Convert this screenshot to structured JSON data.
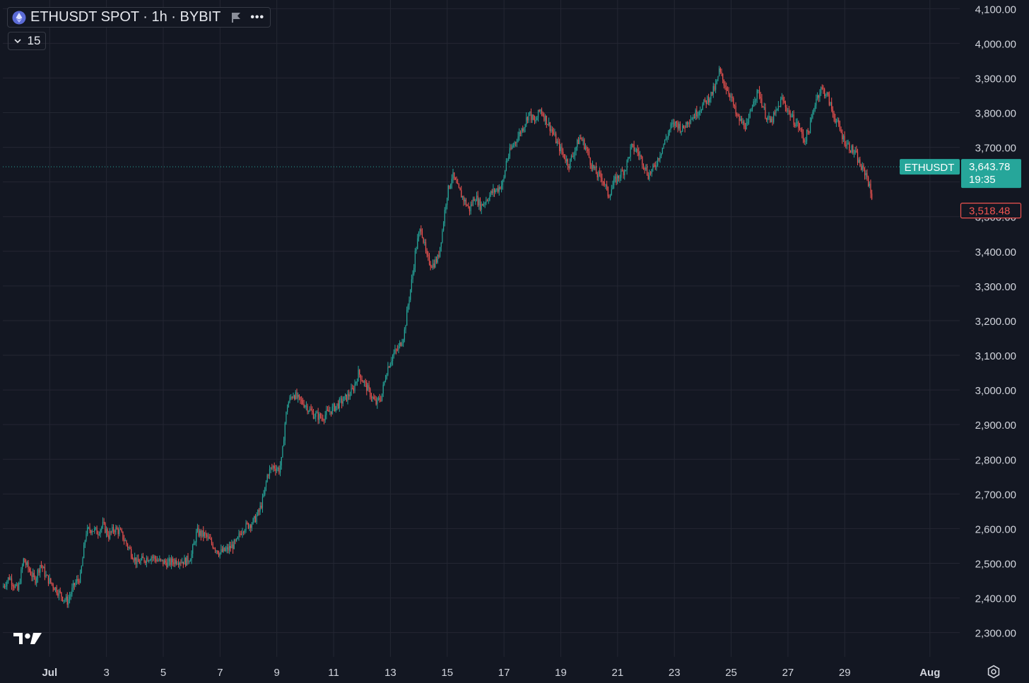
{
  "header": {
    "title": "ETHUSDT SPOT · 1h · BYBIT",
    "interval_value": "15"
  },
  "icons": {
    "coin": "ethereum-coin-icon",
    "flag": "flag-icon",
    "more": "more-dots-icon",
    "chevron": "chevron-down-icon",
    "logo": "tradingview-logo",
    "settings": "settings-gear-icon"
  },
  "colors": {
    "background": "#131722",
    "up": "#26a69a",
    "down": "#ef5350",
    "grid": "#242733",
    "text": "#d1d4dc"
  },
  "price_tags": {
    "last": {
      "symbol": "ETHUSDT",
      "price": "3,643.78",
      "countdown": "19:35"
    },
    "low": {
      "price": "3,518.48"
    }
  },
  "chart_data": {
    "type": "candlestick",
    "ylim": [
      2230,
      4125
    ],
    "y_ticks": [
      "2,300.00",
      "2,400.00",
      "2,500.00",
      "2,600.00",
      "2,700.00",
      "2,800.00",
      "2,900.00",
      "3,000.00",
      "3,100.00",
      "3,200.00",
      "3,300.00",
      "3,400.00",
      "3,500.00",
      "3,600.00",
      "3,700.00",
      "3,800.00",
      "3,900.00",
      "4,000.00",
      "4,100.00"
    ],
    "x_ticks": [
      "Jul",
      "3",
      "5",
      "7",
      "9",
      "11",
      "13",
      "15",
      "17",
      "19",
      "21",
      "23",
      "25",
      "27",
      "29",
      "Aug"
    ],
    "x_tick_days": [
      1,
      3,
      5,
      7,
      9,
      11,
      13,
      15,
      17,
      19,
      21,
      23,
      25,
      27,
      29,
      32
    ],
    "x_range_days": [
      -0.65,
      33.05
    ],
    "last_price": 3643.78,
    "low_tag_price": 3518.48,
    "price_path": [
      [
        -0.65,
        2430
      ],
      [
        -0.4,
        2460
      ],
      [
        -0.1,
        2420
      ],
      [
        0.1,
        2510
      ],
      [
        0.3,
        2480
      ],
      [
        0.5,
        2450
      ],
      [
        0.7,
        2500
      ],
      [
        0.9,
        2460
      ],
      [
        1.1,
        2440
      ],
      [
        1.3,
        2420
      ],
      [
        1.5,
        2400
      ],
      [
        1.65,
        2390
      ],
      [
        1.9,
        2440
      ],
      [
        2.1,
        2460
      ],
      [
        2.3,
        2590
      ],
      [
        2.5,
        2600
      ],
      [
        2.7,
        2590
      ],
      [
        2.9,
        2610
      ],
      [
        3.1,
        2580
      ],
      [
        3.3,
        2600
      ],
      [
        3.5,
        2590
      ],
      [
        3.7,
        2560
      ],
      [
        3.9,
        2530
      ],
      [
        4.1,
        2500
      ],
      [
        4.3,
        2510
      ],
      [
        4.6,
        2520
      ],
      [
        4.9,
        2505
      ],
      [
        5.2,
        2500
      ],
      [
        5.5,
        2510
      ],
      [
        5.8,
        2505
      ],
      [
        6.0,
        2520
      ],
      [
        6.2,
        2590
      ],
      [
        6.5,
        2580
      ],
      [
        6.8,
        2550
      ],
      [
        7.0,
        2530
      ],
      [
        7.3,
        2540
      ],
      [
        7.6,
        2560
      ],
      [
        7.8,
        2600
      ],
      [
        8.0,
        2610
      ],
      [
        8.2,
        2620
      ],
      [
        8.4,
        2650
      ],
      [
        8.55,
        2690
      ],
      [
        8.7,
        2760
      ],
      [
        8.9,
        2780
      ],
      [
        9.1,
        2770
      ],
      [
        9.2,
        2800
      ],
      [
        9.3,
        2900
      ],
      [
        9.4,
        2960
      ],
      [
        9.6,
        2990
      ],
      [
        9.8,
        2970
      ],
      [
        10.0,
        2960
      ],
      [
        10.3,
        2930
      ],
      [
        10.6,
        2920
      ],
      [
        10.9,
        2940
      ],
      [
        11.2,
        2960
      ],
      [
        11.5,
        2980
      ],
      [
        11.7,
        3000
      ],
      [
        11.9,
        3050
      ],
      [
        12.1,
        3020
      ],
      [
        12.3,
        2990
      ],
      [
        12.5,
        2960
      ],
      [
        12.7,
        2980
      ],
      [
        12.9,
        3060
      ],
      [
        13.1,
        3100
      ],
      [
        13.3,
        3120
      ],
      [
        13.5,
        3160
      ],
      [
        13.65,
        3250
      ],
      [
        13.8,
        3330
      ],
      [
        13.9,
        3400
      ],
      [
        14.0,
        3440
      ],
      [
        14.1,
        3470
      ],
      [
        14.3,
        3380
      ],
      [
        14.5,
        3360
      ],
      [
        14.7,
        3380
      ],
      [
        14.85,
        3460
      ],
      [
        15.0,
        3560
      ],
      [
        15.2,
        3620
      ],
      [
        15.4,
        3580
      ],
      [
        15.6,
        3550
      ],
      [
        15.8,
        3520
      ],
      [
        16.0,
        3560
      ],
      [
        16.2,
        3530
      ],
      [
        16.4,
        3550
      ],
      [
        16.6,
        3570
      ],
      [
        16.8,
        3580
      ],
      [
        17.0,
        3600
      ],
      [
        17.1,
        3660
      ],
      [
        17.3,
        3700
      ],
      [
        17.5,
        3730
      ],
      [
        17.7,
        3760
      ],
      [
        17.9,
        3800
      ],
      [
        18.1,
        3770
      ],
      [
        18.3,
        3810
      ],
      [
        18.5,
        3780
      ],
      [
        18.7,
        3750
      ],
      [
        18.9,
        3710
      ],
      [
        19.1,
        3680
      ],
      [
        19.3,
        3650
      ],
      [
        19.5,
        3690
      ],
      [
        19.7,
        3730
      ],
      [
        19.9,
        3700
      ],
      [
        20.1,
        3650
      ],
      [
        20.3,
        3620
      ],
      [
        20.5,
        3610
      ],
      [
        20.7,
        3560
      ],
      [
        20.9,
        3600
      ],
      [
        21.1,
        3620
      ],
      [
        21.3,
        3640
      ],
      [
        21.5,
        3700
      ],
      [
        21.7,
        3690
      ],
      [
        21.9,
        3660
      ],
      [
        22.1,
        3620
      ],
      [
        22.3,
        3640
      ],
      [
        22.5,
        3680
      ],
      [
        22.7,
        3720
      ],
      [
        22.9,
        3760
      ],
      [
        23.1,
        3770
      ],
      [
        23.3,
        3750
      ],
      [
        23.5,
        3780
      ],
      [
        23.7,
        3790
      ],
      [
        23.9,
        3810
      ],
      [
        24.1,
        3830
      ],
      [
        24.3,
        3850
      ],
      [
        24.5,
        3880
      ],
      [
        24.6,
        3920
      ],
      [
        24.8,
        3880
      ],
      [
        25.0,
        3850
      ],
      [
        25.2,
        3790
      ],
      [
        25.4,
        3770
      ],
      [
        25.6,
        3760
      ],
      [
        25.8,
        3840
      ],
      [
        26.0,
        3860
      ],
      [
        26.2,
        3800
      ],
      [
        26.4,
        3770
      ],
      [
        26.6,
        3800
      ],
      [
        26.8,
        3840
      ],
      [
        27.0,
        3810
      ],
      [
        27.2,
        3780
      ],
      [
        27.4,
        3760
      ],
      [
        27.6,
        3720
      ],
      [
        27.8,
        3760
      ],
      [
        28.0,
        3840
      ],
      [
        28.2,
        3870
      ],
      [
        28.4,
        3850
      ],
      [
        28.6,
        3800
      ],
      [
        28.8,
        3760
      ],
      [
        29.0,
        3720
      ],
      [
        29.2,
        3700
      ],
      [
        29.4,
        3680
      ],
      [
        29.6,
        3640
      ],
      [
        29.8,
        3620
      ],
      [
        29.95,
        3560
      ]
    ]
  }
}
